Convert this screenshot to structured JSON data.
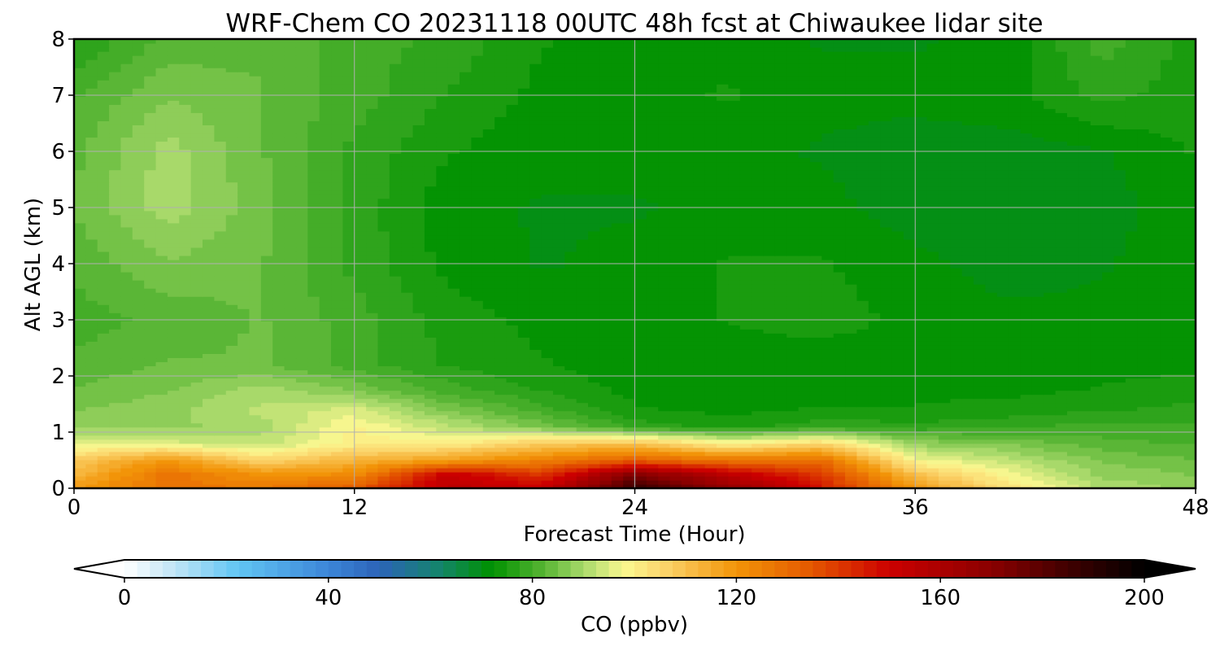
{
  "chart_data": {
    "type": "heatmap",
    "title": "WRF-Chem CO  20231118 00UTC 48h fcst at Chiwaukee lidar site",
    "xlabel": "Forecast Time (Hour)",
    "ylabel": "Alt AGL (km)",
    "xlim": [
      0,
      48
    ],
    "ylim": [
      0,
      8
    ],
    "xticks": [
      0,
      12,
      24,
      36,
      48
    ],
    "yticks": [
      0,
      1,
      2,
      3,
      4,
      5,
      6,
      7,
      8
    ],
    "grid": true,
    "x": [
      0,
      4,
      8,
      12,
      16,
      20,
      24,
      28,
      32,
      36,
      40,
      44,
      48
    ],
    "y": [
      0.05,
      0.25,
      0.5,
      0.8,
      1.1,
      1.4,
      1.75,
      2.2,
      3,
      4,
      5,
      6,
      7,
      8
    ],
    "z": [
      [
        118,
        128,
        125,
        132,
        155,
        150,
        185,
        165,
        145,
        118,
        102,
        90,
        88
      ],
      [
        112,
        128,
        120,
        122,
        152,
        140,
        172,
        155,
        140,
        110,
        98,
        88,
        86
      ],
      [
        108,
        120,
        106,
        113,
        118,
        125,
        133,
        128,
        130,
        98,
        92,
        86,
        84
      ],
      [
        96,
        95,
        92,
        100,
        100,
        108,
        110,
        99,
        105,
        88,
        86,
        82,
        81
      ],
      [
        88,
        88,
        90,
        99,
        92,
        85,
        78,
        75,
        78,
        77,
        78,
        80,
        79
      ],
      [
        86,
        88,
        92,
        95,
        86,
        80,
        74,
        73,
        74,
        74,
        75,
        76,
        77
      ],
      [
        84,
        86,
        90,
        86,
        80,
        76,
        73,
        72,
        73,
        73,
        73,
        74,
        75
      ],
      [
        82,
        84,
        84,
        80,
        76,
        74,
        72,
        72,
        72,
        72,
        72,
        73,
        73
      ],
      [
        80,
        82,
        84,
        80,
        75,
        73,
        72,
        74,
        75,
        73,
        72,
        72,
        73
      ],
      [
        82,
        86,
        84,
        78,
        73,
        71,
        72,
        74,
        74,
        72,
        70,
        71,
        73
      ],
      [
        84,
        90,
        85,
        78,
        72,
        71,
        71,
        72,
        72,
        70,
        69,
        70,
        73
      ],
      [
        83,
        90,
        84,
        78,
        74,
        72,
        72,
        72,
        71,
        70,
        70,
        71,
        74
      ],
      [
        81,
        86,
        84,
        80,
        76,
        73,
        73,
        74,
        72,
        72,
        73,
        77,
        75
      ],
      [
        76,
        82,
        83,
        80,
        78,
        74,
        72,
        73,
        71,
        71,
        72,
        80,
        75
      ]
    ],
    "colorbar": {
      "label": "CO  (ppbv)",
      "min": 0,
      "max": 200,
      "ticks": [
        0,
        40,
        80,
        120,
        160,
        200
      ],
      "extend": "both",
      "stops": [
        {
          "v": 0,
          "c": "#ffffff"
        },
        {
          "v": 10,
          "c": "#bfe4f6"
        },
        {
          "v": 22,
          "c": "#62c6f4"
        },
        {
          "v": 40,
          "c": "#3c86d8"
        },
        {
          "v": 50,
          "c": "#2c63b8"
        },
        {
          "v": 62,
          "c": "#13856a"
        },
        {
          "v": 72,
          "c": "#009100"
        },
        {
          "v": 82,
          "c": "#55b432"
        },
        {
          "v": 90,
          "c": "#a8d96a"
        },
        {
          "v": 98,
          "c": "#fbf890"
        },
        {
          "v": 106,
          "c": "#fbd36a"
        },
        {
          "v": 120,
          "c": "#f29408"
        },
        {
          "v": 134,
          "c": "#e55b00"
        },
        {
          "v": 150,
          "c": "#cc0000"
        },
        {
          "v": 170,
          "c": "#8a0000"
        },
        {
          "v": 185,
          "c": "#400000"
        },
        {
          "v": 200,
          "c": "#000000"
        }
      ]
    }
  }
}
